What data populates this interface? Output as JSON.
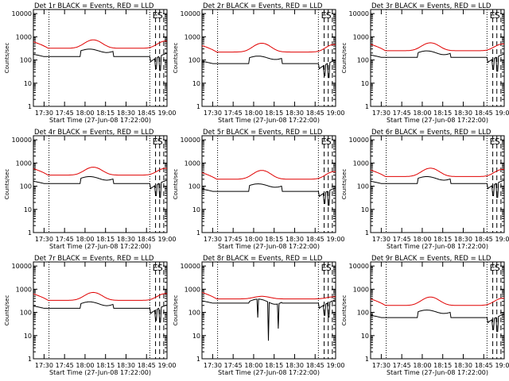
{
  "chart_data": {
    "type": "line",
    "layout": "grid",
    "grid_rows": 3,
    "grid_cols": 3,
    "xlim": [
      17.37,
      19.0
    ],
    "ylim": [
      1,
      15000
    ],
    "yscale": "log",
    "yticks": [
      1,
      10,
      100,
      1000,
      10000
    ],
    "ytick_labels": [
      "1",
      "10",
      "100",
      "1000",
      "10000"
    ],
    "xticks": [
      17.5,
      17.75,
      18.0,
      18.25,
      18.5,
      18.75,
      19.0
    ],
    "xtick_labels": [
      "17:30",
      "17:45",
      "18:00",
      "18:15",
      "18:30",
      "18:45",
      "19:00"
    ],
    "xlabel": "Start Time (27-Jun-08 17:22:00)",
    "ylabel": "Counts/sec",
    "dotted_lines_x": [
      17.56,
      18.79
    ],
    "dashed_lines_x": [
      18.86,
      18.91,
      18.96
    ],
    "markers": [
      {
        "x": 18.855,
        "text": "E"
      },
      {
        "x": 18.915,
        "text": "S"
      }
    ],
    "series_legend": {
      "black": "Events",
      "red": "LLD"
    },
    "panels": [
      {
        "title": "Det 1r BLACK = Events, RED = LLD",
        "red_base": 320,
        "red_amp": 2.3,
        "black_base": 140,
        "black_amp": 1.8,
        "spikes": []
      },
      {
        "title": "Det 2r BLACK = Events, RED = LLD",
        "red_base": 220,
        "red_amp": 2.4,
        "black_base": 70,
        "black_amp": 1.8,
        "spikes": []
      },
      {
        "title": "Det 3r BLACK = Events, RED = LLD",
        "red_base": 250,
        "red_amp": 2.2,
        "black_base": 130,
        "black_amp": 1.6,
        "spikes": []
      },
      {
        "title": "Det 4r BLACK = Events, RED = LLD",
        "red_base": 300,
        "red_amp": 2.2,
        "black_base": 130,
        "black_amp": 1.7,
        "spikes": []
      },
      {
        "title": "Det 5r BLACK = Events, RED = LLD",
        "red_base": 200,
        "red_amp": 2.4,
        "black_base": 60,
        "black_amp": 1.8,
        "spikes": []
      },
      {
        "title": "Det 6r BLACK = Events, RED = LLD",
        "red_base": 260,
        "red_amp": 2.3,
        "black_base": 130,
        "black_amp": 1.7,
        "spikes": []
      },
      {
        "title": "Det 7r BLACK = Events, RED = LLD",
        "red_base": 330,
        "red_amp": 2.2,
        "black_base": 150,
        "black_amp": 1.6,
        "spikes": []
      },
      {
        "title": "Det 8r BLACK = Events, RED = LLD",
        "red_base": 380,
        "red_amp": 1.3,
        "black_base": 250,
        "black_amp": 1.2,
        "spikes": [
          {
            "x": 18.18,
            "y": 6
          },
          {
            "x": 18.3,
            "y": 20
          },
          {
            "x": 18.05,
            "y": 60
          }
        ]
      },
      {
        "title": "Det 9r BLACK = Events, RED = LLD",
        "red_base": 200,
        "red_amp": 2.3,
        "black_base": 60,
        "black_amp": 1.8,
        "spikes": []
      }
    ]
  }
}
